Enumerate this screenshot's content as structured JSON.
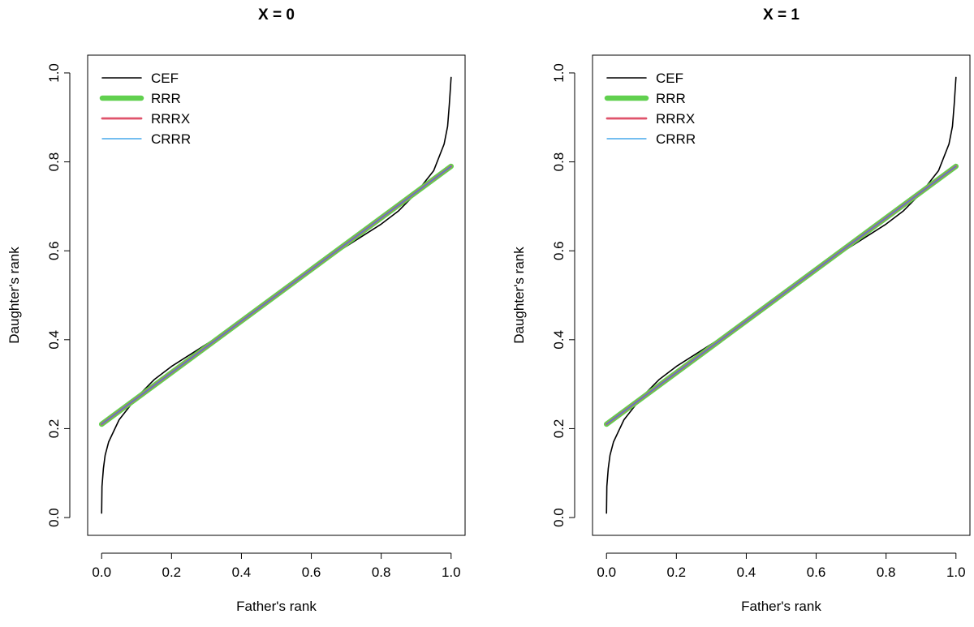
{
  "chart_data": [
    {
      "type": "line",
      "title": "X = 0",
      "xlabel": "Father's rank",
      "ylabel": "Daughter's rank",
      "xlim": [
        0,
        1
      ],
      "ylim": [
        0,
        1
      ],
      "xticks": [
        0.0,
        0.2,
        0.4,
        0.6,
        0.8,
        1.0
      ],
      "yticks": [
        0.0,
        0.2,
        0.4,
        0.6,
        0.8,
        1.0
      ],
      "tick_labels_x": [
        "0.0",
        "0.2",
        "0.4",
        "0.6",
        "0.8",
        "1.0"
      ],
      "tick_labels_y": [
        "0.0",
        "0.2",
        "0.4",
        "0.6",
        "0.8",
        "1.0"
      ],
      "grid": false,
      "legend_position": "top-left",
      "series": [
        {
          "name": "CEF",
          "color": "#000000",
          "x": [
            0.0,
            0.001,
            0.005,
            0.01,
            0.02,
            0.05,
            0.1,
            0.15,
            0.2,
            0.3,
            0.4,
            0.5,
            0.6,
            0.7,
            0.8,
            0.85,
            0.9,
            0.95,
            0.98,
            0.99,
            0.995,
            1.0
          ],
          "y": [
            0.01,
            0.07,
            0.11,
            0.14,
            0.17,
            0.22,
            0.27,
            0.31,
            0.34,
            0.39,
            0.44,
            0.5,
            0.56,
            0.61,
            0.66,
            0.69,
            0.73,
            0.78,
            0.84,
            0.88,
            0.93,
            0.99
          ]
        },
        {
          "name": "RRR",
          "color": "#61D04F",
          "x": [
            0.0,
            1.0
          ],
          "y": [
            0.21,
            0.79
          ]
        },
        {
          "name": "RRRX",
          "color": "#DF536B",
          "x": [
            0.0,
            1.0
          ],
          "y": [
            0.21,
            0.79
          ]
        },
        {
          "name": "CRRR",
          "color": "#2297E6",
          "x": [
            0.0,
            1.0
          ],
          "y": [
            0.21,
            0.79
          ]
        }
      ]
    },
    {
      "type": "line",
      "title": "X = 1",
      "xlabel": "Father's rank",
      "ylabel": "Daughter's rank",
      "xlim": [
        0,
        1
      ],
      "ylim": [
        0,
        1
      ],
      "xticks": [
        0.0,
        0.2,
        0.4,
        0.6,
        0.8,
        1.0
      ],
      "yticks": [
        0.0,
        0.2,
        0.4,
        0.6,
        0.8,
        1.0
      ],
      "tick_labels_x": [
        "0.0",
        "0.2",
        "0.4",
        "0.6",
        "0.8",
        "1.0"
      ],
      "tick_labels_y": [
        "0.0",
        "0.2",
        "0.4",
        "0.6",
        "0.8",
        "1.0"
      ],
      "grid": false,
      "legend_position": "top-left",
      "series": [
        {
          "name": "CEF",
          "color": "#000000",
          "x": [
            0.0,
            0.001,
            0.005,
            0.01,
            0.02,
            0.05,
            0.1,
            0.15,
            0.2,
            0.3,
            0.4,
            0.5,
            0.6,
            0.7,
            0.8,
            0.85,
            0.9,
            0.95,
            0.98,
            0.99,
            0.995,
            1.0
          ],
          "y": [
            0.01,
            0.07,
            0.11,
            0.14,
            0.17,
            0.22,
            0.27,
            0.31,
            0.34,
            0.39,
            0.44,
            0.5,
            0.56,
            0.61,
            0.66,
            0.69,
            0.73,
            0.78,
            0.84,
            0.88,
            0.93,
            0.99
          ]
        },
        {
          "name": "RRR",
          "color": "#61D04F",
          "x": [
            0.0,
            1.0
          ],
          "y": [
            0.21,
            0.79
          ]
        },
        {
          "name": "RRRX",
          "color": "#DF536B",
          "x": [
            0.0,
            1.0
          ],
          "y": [
            0.21,
            0.79
          ]
        },
        {
          "name": "CRRR",
          "color": "#2297E6",
          "x": [
            0.0,
            1.0
          ],
          "y": [
            0.21,
            0.79
          ]
        }
      ]
    }
  ]
}
